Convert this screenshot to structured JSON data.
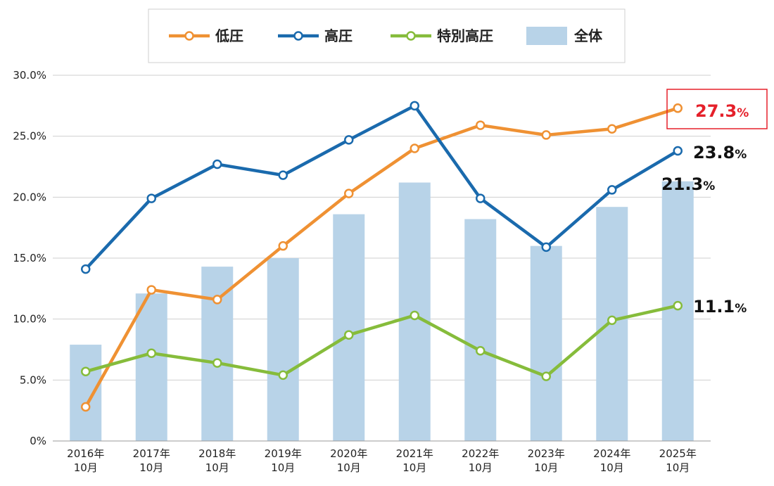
{
  "chart_data": {
    "type": "bar+line",
    "categories": [
      [
        "2016年",
        "10月"
      ],
      [
        "2017年",
        "10月"
      ],
      [
        "2018年",
        "10月"
      ],
      [
        "2019年",
        "10月"
      ],
      [
        "2020年",
        "10月"
      ],
      [
        "2021年",
        "10月"
      ],
      [
        "2022年",
        "10月"
      ],
      [
        "2023年",
        "10月"
      ],
      [
        "2024年",
        "10月"
      ],
      [
        "2025年",
        "10月"
      ]
    ],
    "ylim": [
      0,
      30
    ],
    "yticks": [
      0,
      5,
      10,
      15,
      20,
      25,
      30
    ],
    "ytick_labels": [
      "0%",
      "5.0%",
      "10.0%",
      "15.0%",
      "20.0%",
      "25.0%",
      "30.0%"
    ],
    "bar_series": {
      "name": "全体",
      "color": "#b8d3e8",
      "values": [
        7.9,
        12.1,
        14.3,
        15.0,
        18.6,
        21.2,
        18.2,
        16.0,
        19.2,
        21.3
      ]
    },
    "line_series": [
      {
        "name": "低圧",
        "color": "#ef9133",
        "values": [
          2.8,
          12.4,
          11.6,
          16.0,
          20.3,
          24.0,
          25.9,
          25.1,
          25.6,
          27.3
        ]
      },
      {
        "name": "高圧",
        "color": "#1a6aad",
        "values": [
          14.1,
          19.9,
          22.7,
          21.8,
          24.7,
          27.5,
          19.9,
          15.9,
          20.6,
          23.8
        ]
      },
      {
        "name": "特別高圧",
        "color": "#86bc3b",
        "values": [
          5.7,
          7.2,
          6.4,
          5.4,
          8.7,
          10.3,
          7.4,
          5.3,
          9.9,
          11.1
        ]
      }
    ],
    "legend": [
      "低圧",
      "高圧",
      "特別高圧",
      "全体"
    ],
    "legend_position": "top",
    "grid": true,
    "end_labels": [
      {
        "series": "低圧",
        "number": "27.3",
        "unit": "%",
        "color": "#e5202a",
        "boxed": true
      },
      {
        "series": "高圧",
        "number": "23.8",
        "unit": "%",
        "color": "#111111",
        "boxed": false
      },
      {
        "series": "全体",
        "number": "21.3",
        "unit": "%",
        "color": "#111111",
        "boxed": false
      },
      {
        "series": "特別高圧",
        "number": "11.1",
        "unit": "%",
        "color": "#111111",
        "boxed": false
      }
    ]
  }
}
